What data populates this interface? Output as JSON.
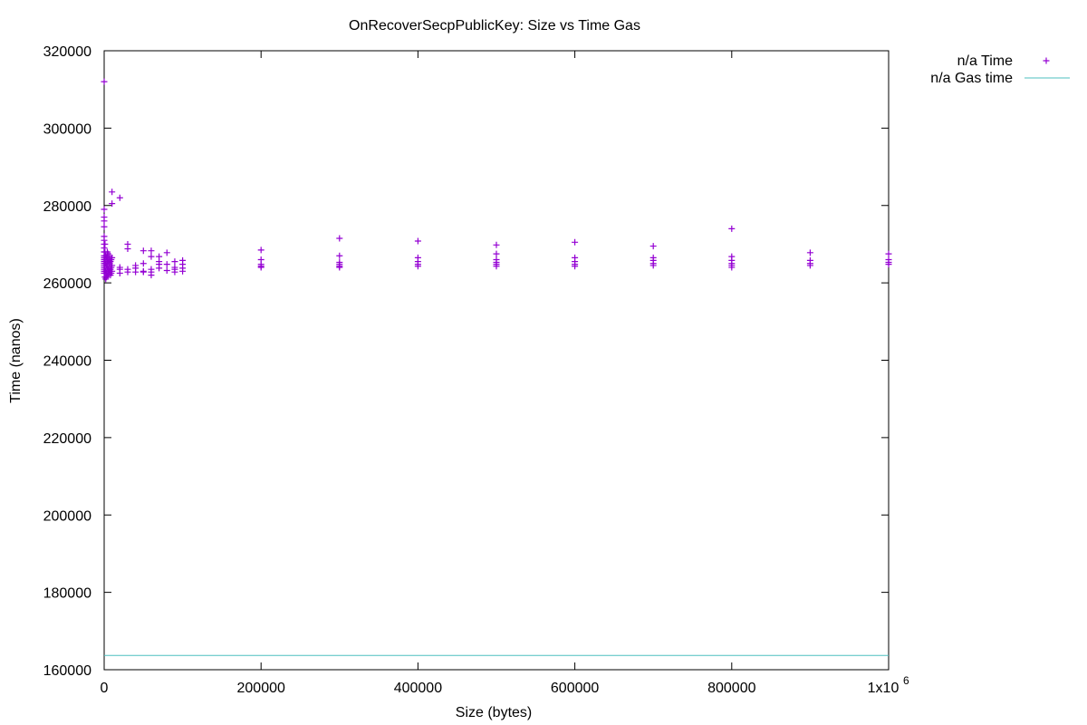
{
  "chart_data": {
    "type": "scatter",
    "title": "OnRecoverSecpPublicKey: Size vs Time   Gas",
    "xlabel": "Size (bytes)",
    "ylabel": "Time (nanos)",
    "xlim": [
      0,
      1000000
    ],
    "ylim": [
      160000,
      320000
    ],
    "x_ticks": [
      0,
      200000,
      400000,
      600000,
      800000,
      1000000
    ],
    "x_tick_labels": [
      "0",
      "200000",
      "400000",
      "600000",
      "800000",
      "1x10"
    ],
    "x_last_tick_exponent": "6",
    "y_ticks": [
      160000,
      180000,
      200000,
      220000,
      240000,
      260000,
      280000,
      300000,
      320000
    ],
    "y_tick_labels": [
      "160000",
      "180000",
      "200000",
      "220000",
      "240000",
      "260000",
      "280000",
      "300000",
      "320000"
    ],
    "grid": false,
    "legend_position": "top-right, outside plot",
    "series": [
      {
        "name": "n/a Time",
        "style": "points (+)",
        "color": "#9400d3",
        "points": [
          [
            0,
            312000
          ],
          [
            0,
            279000
          ],
          [
            0,
            277000
          ],
          [
            0,
            276000
          ],
          [
            0,
            274500
          ],
          [
            0,
            272000
          ],
          [
            0,
            271000
          ],
          [
            0,
            270000
          ],
          [
            0,
            269000
          ],
          [
            0,
            268000
          ],
          [
            0,
            267000
          ],
          [
            0,
            266500
          ],
          [
            0,
            266000
          ],
          [
            0,
            265500
          ],
          [
            0,
            265000
          ],
          [
            0,
            264500
          ],
          [
            0,
            264000
          ],
          [
            0,
            263500
          ],
          [
            0,
            263000
          ],
          [
            0,
            262500
          ],
          [
            1000,
            270000
          ],
          [
            1000,
            268000
          ],
          [
            1000,
            266000
          ],
          [
            1000,
            264000
          ],
          [
            1000,
            262500
          ],
          [
            1000,
            261500
          ],
          [
            2000,
            267000
          ],
          [
            2000,
            265000
          ],
          [
            2000,
            263000
          ],
          [
            2000,
            261000
          ],
          [
            3000,
            266500
          ],
          [
            3000,
            264500
          ],
          [
            3000,
            262500
          ],
          [
            3000,
            261500
          ],
          [
            4000,
            268000
          ],
          [
            4000,
            266000
          ],
          [
            4000,
            264000
          ],
          [
            4000,
            262000
          ],
          [
            5000,
            267500
          ],
          [
            5000,
            265500
          ],
          [
            5000,
            263500
          ],
          [
            5000,
            262000
          ],
          [
            6000,
            266000
          ],
          [
            6000,
            264000
          ],
          [
            6000,
            262500
          ],
          [
            7000,
            267000
          ],
          [
            7000,
            265000
          ],
          [
            7000,
            263000
          ],
          [
            8000,
            265500
          ],
          [
            8000,
            263500
          ],
          [
            8000,
            262000
          ],
          [
            9000,
            266000
          ],
          [
            9000,
            264000
          ],
          [
            9000,
            262500
          ],
          [
            10000,
            283500
          ],
          [
            10000,
            280500
          ],
          [
            10000,
            266500
          ],
          [
            10000,
            264500
          ],
          [
            10000,
            263000
          ],
          [
            20000,
            282000
          ],
          [
            20000,
            264000
          ],
          [
            20000,
            263500
          ],
          [
            20000,
            262500
          ],
          [
            30000,
            270000
          ],
          [
            30000,
            268800
          ],
          [
            30000,
            263500
          ],
          [
            30000,
            262800
          ],
          [
            40000,
            264500
          ],
          [
            40000,
            263800
          ],
          [
            40000,
            262800
          ],
          [
            50000,
            268300
          ],
          [
            50000,
            265000
          ],
          [
            50000,
            263000
          ],
          [
            50000,
            262800
          ],
          [
            60000,
            268300
          ],
          [
            60000,
            266800
          ],
          [
            60000,
            263500
          ],
          [
            60000,
            262800
          ],
          [
            60000,
            262000
          ],
          [
            70000,
            266800
          ],
          [
            70000,
            265500
          ],
          [
            70000,
            264800
          ],
          [
            70000,
            263800
          ],
          [
            80000,
            267800
          ],
          [
            80000,
            264800
          ],
          [
            80000,
            263200
          ],
          [
            90000,
            265500
          ],
          [
            90000,
            264000
          ],
          [
            90000,
            263500
          ],
          [
            90000,
            262800
          ],
          [
            100000,
            265800
          ],
          [
            100000,
            264800
          ],
          [
            100000,
            263800
          ],
          [
            100000,
            263000
          ],
          [
            200000,
            268500
          ],
          [
            200000,
            266000
          ],
          [
            200000,
            264800
          ],
          [
            200000,
            264300
          ],
          [
            200000,
            264000
          ],
          [
            300000,
            271500
          ],
          [
            300000,
            267000
          ],
          [
            300000,
            265300
          ],
          [
            300000,
            264800
          ],
          [
            300000,
            264300
          ],
          [
            300000,
            264000
          ],
          [
            400000,
            270800
          ],
          [
            400000,
            266500
          ],
          [
            400000,
            265500
          ],
          [
            400000,
            264800
          ],
          [
            400000,
            264300
          ],
          [
            500000,
            269800
          ],
          [
            500000,
            267500
          ],
          [
            500000,
            266000
          ],
          [
            500000,
            265300
          ],
          [
            500000,
            264800
          ],
          [
            500000,
            264300
          ],
          [
            600000,
            270500
          ],
          [
            600000,
            266500
          ],
          [
            600000,
            265500
          ],
          [
            600000,
            264800
          ],
          [
            600000,
            264300
          ],
          [
            700000,
            269500
          ],
          [
            700000,
            266500
          ],
          [
            700000,
            265800
          ],
          [
            700000,
            265000
          ],
          [
            700000,
            264500
          ],
          [
            800000,
            274000
          ],
          [
            800000,
            266800
          ],
          [
            800000,
            265800
          ],
          [
            800000,
            265000
          ],
          [
            800000,
            264500
          ],
          [
            800000,
            264000
          ],
          [
            900000,
            267800
          ],
          [
            900000,
            265800
          ],
          [
            900000,
            265000
          ],
          [
            900000,
            264500
          ],
          [
            1000000,
            267500
          ],
          [
            1000000,
            266000
          ],
          [
            1000000,
            265300
          ],
          [
            1000000,
            264800
          ]
        ]
      },
      {
        "name": "n/a Gas time",
        "style": "line",
        "color": "#4dbfbf",
        "points": [
          [
            0,
            163700
          ],
          [
            1000000,
            163700
          ]
        ]
      }
    ]
  }
}
